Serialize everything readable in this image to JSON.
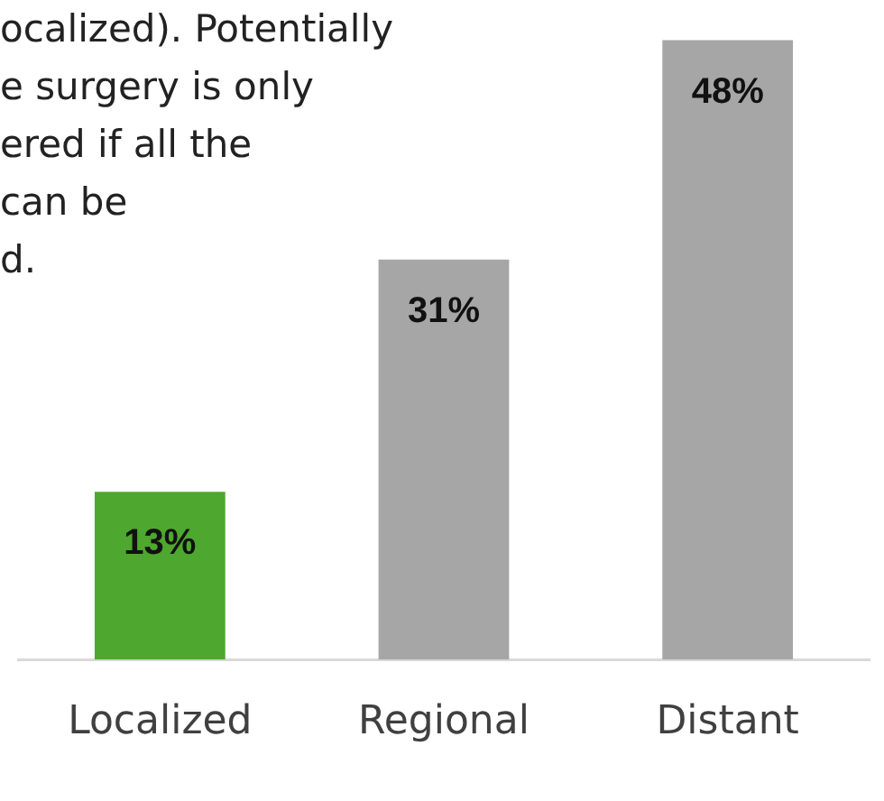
{
  "chart_data": {
    "type": "bar",
    "categories": [
      "Localized",
      "Regional",
      "Distant"
    ],
    "values": [
      13,
      31,
      48
    ],
    "colors": [
      "#4ea72e",
      "#a6a6a6",
      "#a6a6a6"
    ],
    "value_labels": [
      "13%",
      "31%",
      "48%"
    ],
    "annotations": [
      "ocalized). Potentially\ne surgery is only\nered if all the\ncan be\nd."
    ],
    "grid": false,
    "legend": false
  }
}
